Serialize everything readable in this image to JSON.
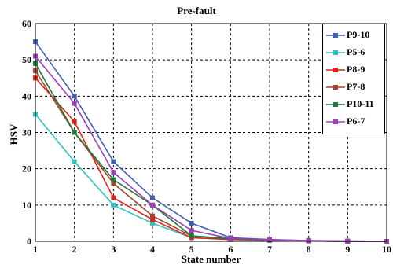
{
  "chart_data": {
    "type": "line",
    "title": "Pre-fault",
    "xlabel": "State number",
    "ylabel": "HSV",
    "xlim": [
      1,
      10
    ],
    "ylim": [
      0,
      60
    ],
    "x": [
      1,
      2,
      3,
      4,
      5,
      6,
      7,
      8,
      9,
      10
    ],
    "xticks": [
      "1",
      "2",
      "3",
      "4",
      "5",
      "6",
      "7",
      "8",
      "9",
      "10"
    ],
    "yticks": [
      "0",
      "10",
      "20",
      "30",
      "40",
      "50",
      "60"
    ],
    "grid": true,
    "legend_position": "top-right",
    "series": [
      {
        "name": "P9-10",
        "color": "#3f5fb5",
        "values": [
          55,
          40,
          22,
          12,
          5,
          1,
          0.5,
          0.2,
          0.1,
          0
        ]
      },
      {
        "name": "P5-6",
        "color": "#2fc4c4",
        "values": [
          35,
          22,
          10,
          5,
          1,
          0.5,
          0.3,
          0.1,
          0,
          0
        ]
      },
      {
        "name": "P8-9",
        "color": "#e0201a",
        "values": [
          45,
          33,
          12,
          6,
          1,
          0.5,
          0.3,
          0.1,
          0,
          0
        ]
      },
      {
        "name": "P7-8",
        "color": "#a6432a",
        "values": [
          47,
          30,
          16,
          7,
          1.5,
          0.7,
          0.3,
          0.1,
          0,
          0
        ]
      },
      {
        "name": "P10-11",
        "color": "#1d7a3a",
        "values": [
          49,
          30,
          17,
          10,
          1.5,
          0.7,
          0.3,
          0.1,
          0,
          0
        ]
      },
      {
        "name": "P6-7",
        "color": "#a03cb8",
        "values": [
          51,
          38,
          19,
          10,
          3,
          0.8,
          0.4,
          0.2,
          0.1,
          0
        ]
      }
    ]
  }
}
